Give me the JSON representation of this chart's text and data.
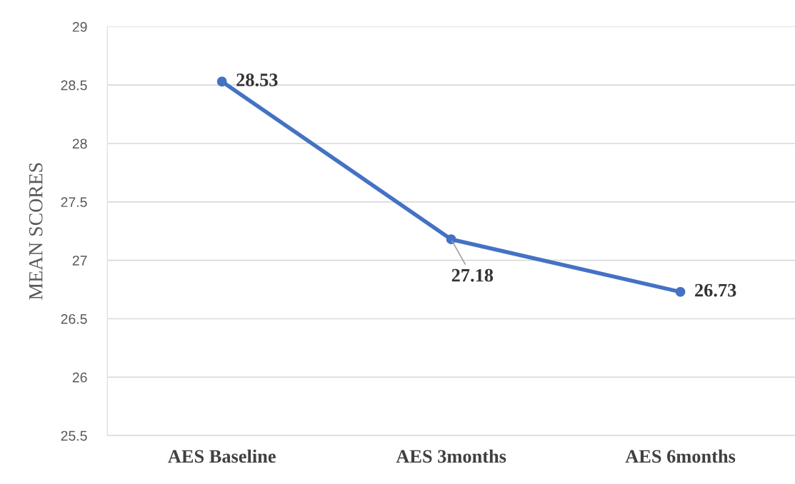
{
  "chart_data": {
    "type": "line",
    "ylabel": "MEAN SCORES",
    "categories": [
      "AES Baseline",
      "AES 3months",
      "AES 6months"
    ],
    "series": [
      {
        "color": "#4472c4",
        "values": [
          28.53,
          27.18,
          26.73
        ]
      }
    ],
    "ylim": [
      25.5,
      29
    ],
    "yticks": [
      25.5,
      26,
      26.5,
      27,
      27.5,
      28,
      28.5,
      29
    ],
    "grid": "y",
    "marker": "circle",
    "line_style": "solid",
    "data_labels": true,
    "legend": false
  }
}
